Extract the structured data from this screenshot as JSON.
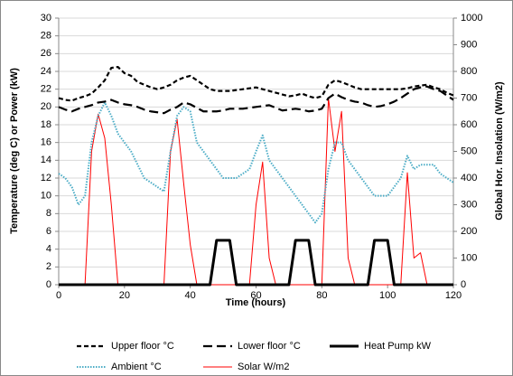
{
  "chart_data": {
    "type": "line",
    "x_label": "Time (hours)",
    "y_label": "Temperature (deg C) or Power (kW)",
    "y2_label": "Global Hor. Insolation (W/m2)",
    "x": [
      0,
      2,
      4,
      6,
      8,
      10,
      12,
      14,
      16,
      18,
      20,
      22,
      24,
      26,
      28,
      30,
      32,
      34,
      36,
      38,
      40,
      42,
      44,
      46,
      48,
      50,
      52,
      54,
      56,
      58,
      60,
      62,
      64,
      66,
      68,
      70,
      72,
      74,
      76,
      78,
      80,
      82,
      84,
      86,
      88,
      90,
      92,
      94,
      96,
      98,
      100,
      102,
      104,
      106,
      108,
      110,
      112,
      114,
      116,
      118,
      120
    ],
    "xlim": [
      0,
      120
    ],
    "xticks": [
      0,
      20,
      40,
      60,
      80,
      100,
      120
    ],
    "ylim": [
      0,
      30
    ],
    "yticks": [
      0,
      2,
      4,
      6,
      8,
      10,
      12,
      14,
      16,
      18,
      20,
      22,
      24,
      26,
      28,
      30
    ],
    "y2lim": [
      0,
      1000
    ],
    "y2ticks": [
      0,
      100,
      200,
      300,
      400,
      500,
      600,
      700,
      800,
      900,
      1000
    ],
    "grid": true,
    "series": [
      {
        "name": "Upper floor °C",
        "color": "#000000",
        "style": "dashed",
        "values": [
          21,
          20.8,
          20.7,
          21,
          21.2,
          21.5,
          22.2,
          23,
          24.4,
          24.5,
          23.8,
          23.5,
          22.8,
          22.5,
          22.2,
          22,
          22.2,
          22.5,
          23,
          23.3,
          23.5,
          23,
          22.5,
          22,
          21.8,
          21.8,
          21.8,
          21.9,
          22,
          22.1,
          22.2,
          22,
          21.8,
          21.6,
          21.4,
          21.2,
          21.3,
          21.5,
          21.2,
          21,
          21.2,
          22.5,
          23,
          22.8,
          22.5,
          22.2,
          22,
          22,
          22,
          22,
          22,
          22,
          22,
          22.1,
          22.3,
          22.4,
          22.5,
          22.2,
          22,
          21.6,
          21.3
        ]
      },
      {
        "name": "Lower floor °C",
        "color": "#000000",
        "style": "longdash",
        "values": [
          20,
          19.7,
          19.5,
          19.8,
          20,
          20.2,
          20.5,
          20.6,
          20.8,
          20.5,
          20.3,
          20.2,
          20,
          19.7,
          19.5,
          19.4,
          19.3,
          19.7,
          20,
          20.5,
          20.3,
          19.9,
          19.5,
          19.5,
          19.5,
          19.6,
          19.8,
          19.8,
          19.8,
          19.9,
          20,
          20.1,
          20.2,
          19.9,
          19.6,
          19.7,
          19.8,
          19.7,
          19.5,
          19.6,
          19.8,
          21,
          21.5,
          21.1,
          20.8,
          20.6,
          20.5,
          20.2,
          20,
          20.1,
          20.3,
          20.6,
          21,
          21.5,
          22,
          22.2,
          22.3,
          22,
          21.8,
          21.3,
          20.8
        ]
      },
      {
        "name": "Heat Pump kW",
        "color": "#000000",
        "style": "solid",
        "values": [
          0,
          0,
          0,
          0,
          0,
          0,
          0,
          0,
          0,
          0,
          0,
          0,
          0,
          0,
          0,
          0,
          0,
          0,
          0,
          0,
          0,
          0,
          0,
          0,
          5,
          5,
          5,
          0,
          0,
          0,
          0,
          0,
          0,
          0,
          0,
          0,
          5,
          5,
          5,
          0,
          0,
          0,
          0,
          0,
          0,
          0,
          0,
          0,
          5,
          5,
          5,
          0,
          0,
          0,
          0,
          0,
          0,
          0,
          0,
          0,
          0
        ]
      },
      {
        "name": "Ambient °C",
        "color": "#4bacc6",
        "style": "dotted",
        "values": [
          12.5,
          12,
          11,
          9,
          10,
          16,
          19,
          20.5,
          19,
          17,
          16,
          15,
          13.5,
          12,
          11.5,
          11,
          10.5,
          15,
          19,
          20,
          19.5,
          16,
          15,
          14,
          13,
          12,
          12,
          12,
          12.5,
          13,
          15,
          16.8,
          14,
          13,
          12,
          11,
          10,
          9,
          8,
          7,
          8,
          13,
          16,
          16,
          14,
          13,
          12,
          11,
          10,
          10,
          10,
          11,
          12,
          14.5,
          13,
          13.5,
          13.5,
          13.5,
          12.5,
          12,
          11.5
        ]
      },
      {
        "name": "Solar W/m2",
        "color": "#ff0000",
        "style": "thin",
        "axis": "y2",
        "values": [
          0,
          0,
          0,
          0,
          0,
          500,
          640,
          550,
          300,
          0,
          0,
          0,
          0,
          0,
          0,
          0,
          0,
          500,
          620,
          380,
          150,
          0,
          0,
          0,
          0,
          0,
          0,
          0,
          0,
          0,
          300,
          460,
          100,
          0,
          0,
          0,
          0,
          0,
          0,
          0,
          0,
          700,
          500,
          650,
          100,
          0,
          0,
          0,
          0,
          0,
          0,
          0,
          0,
          420,
          100,
          120,
          0,
          0,
          0,
          0,
          0
        ]
      }
    ]
  }
}
